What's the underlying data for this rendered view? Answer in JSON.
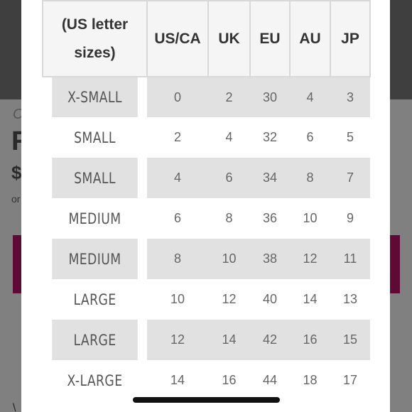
{
  "background": {
    "fragments": [
      "C",
      "R",
      "$",
      "or",
      "\\"
    ]
  },
  "table": {
    "headers": [
      "(US letter sizes)",
      "US/CA",
      "UK",
      "EU",
      "AU",
      "JP"
    ],
    "rows": [
      [
        "X-SMALL",
        "0",
        "2",
        "30",
        "4",
        "3"
      ],
      [
        "SMALL",
        "2",
        "4",
        "32",
        "6",
        "5"
      ],
      [
        "SMALL",
        "4",
        "6",
        "34",
        "8",
        "7"
      ],
      [
        "MEDIUM",
        "6",
        "8",
        "36",
        "10",
        "9"
      ],
      [
        "MEDIUM",
        "8",
        "10",
        "38",
        "12",
        "11"
      ],
      [
        "LARGE",
        "10",
        "12",
        "40",
        "14",
        "13"
      ],
      [
        "LARGE",
        "12",
        "14",
        "42",
        "16",
        "15"
      ],
      [
        "X-LARGE",
        "14",
        "16",
        "44",
        "18",
        "17"
      ]
    ]
  },
  "colors": {
    "row_shade": "#e1e1e1",
    "header_bg": "#f5f5f5",
    "accent_button": "#5e0a35"
  }
}
